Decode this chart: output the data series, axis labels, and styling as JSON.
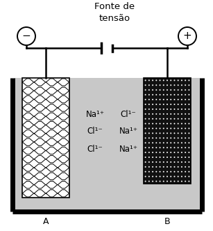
{
  "title": "Fonte de\ntensão",
  "bg_color": "#ffffff",
  "tank_fill_color": "#c8c8c8",
  "label_A": "A",
  "label_B": "B",
  "label_minus": "−",
  "label_plus": "+",
  "ions_left": [
    "Na¹⁺",
    "Cl¹⁻",
    "Cl¹⁻"
  ],
  "ions_right": [
    "Cl¹⁻",
    "Na¹⁺",
    "Na¹⁺"
  ],
  "font_size_title": 9.5,
  "font_size_ions": 8.5,
  "font_size_labels": 9
}
